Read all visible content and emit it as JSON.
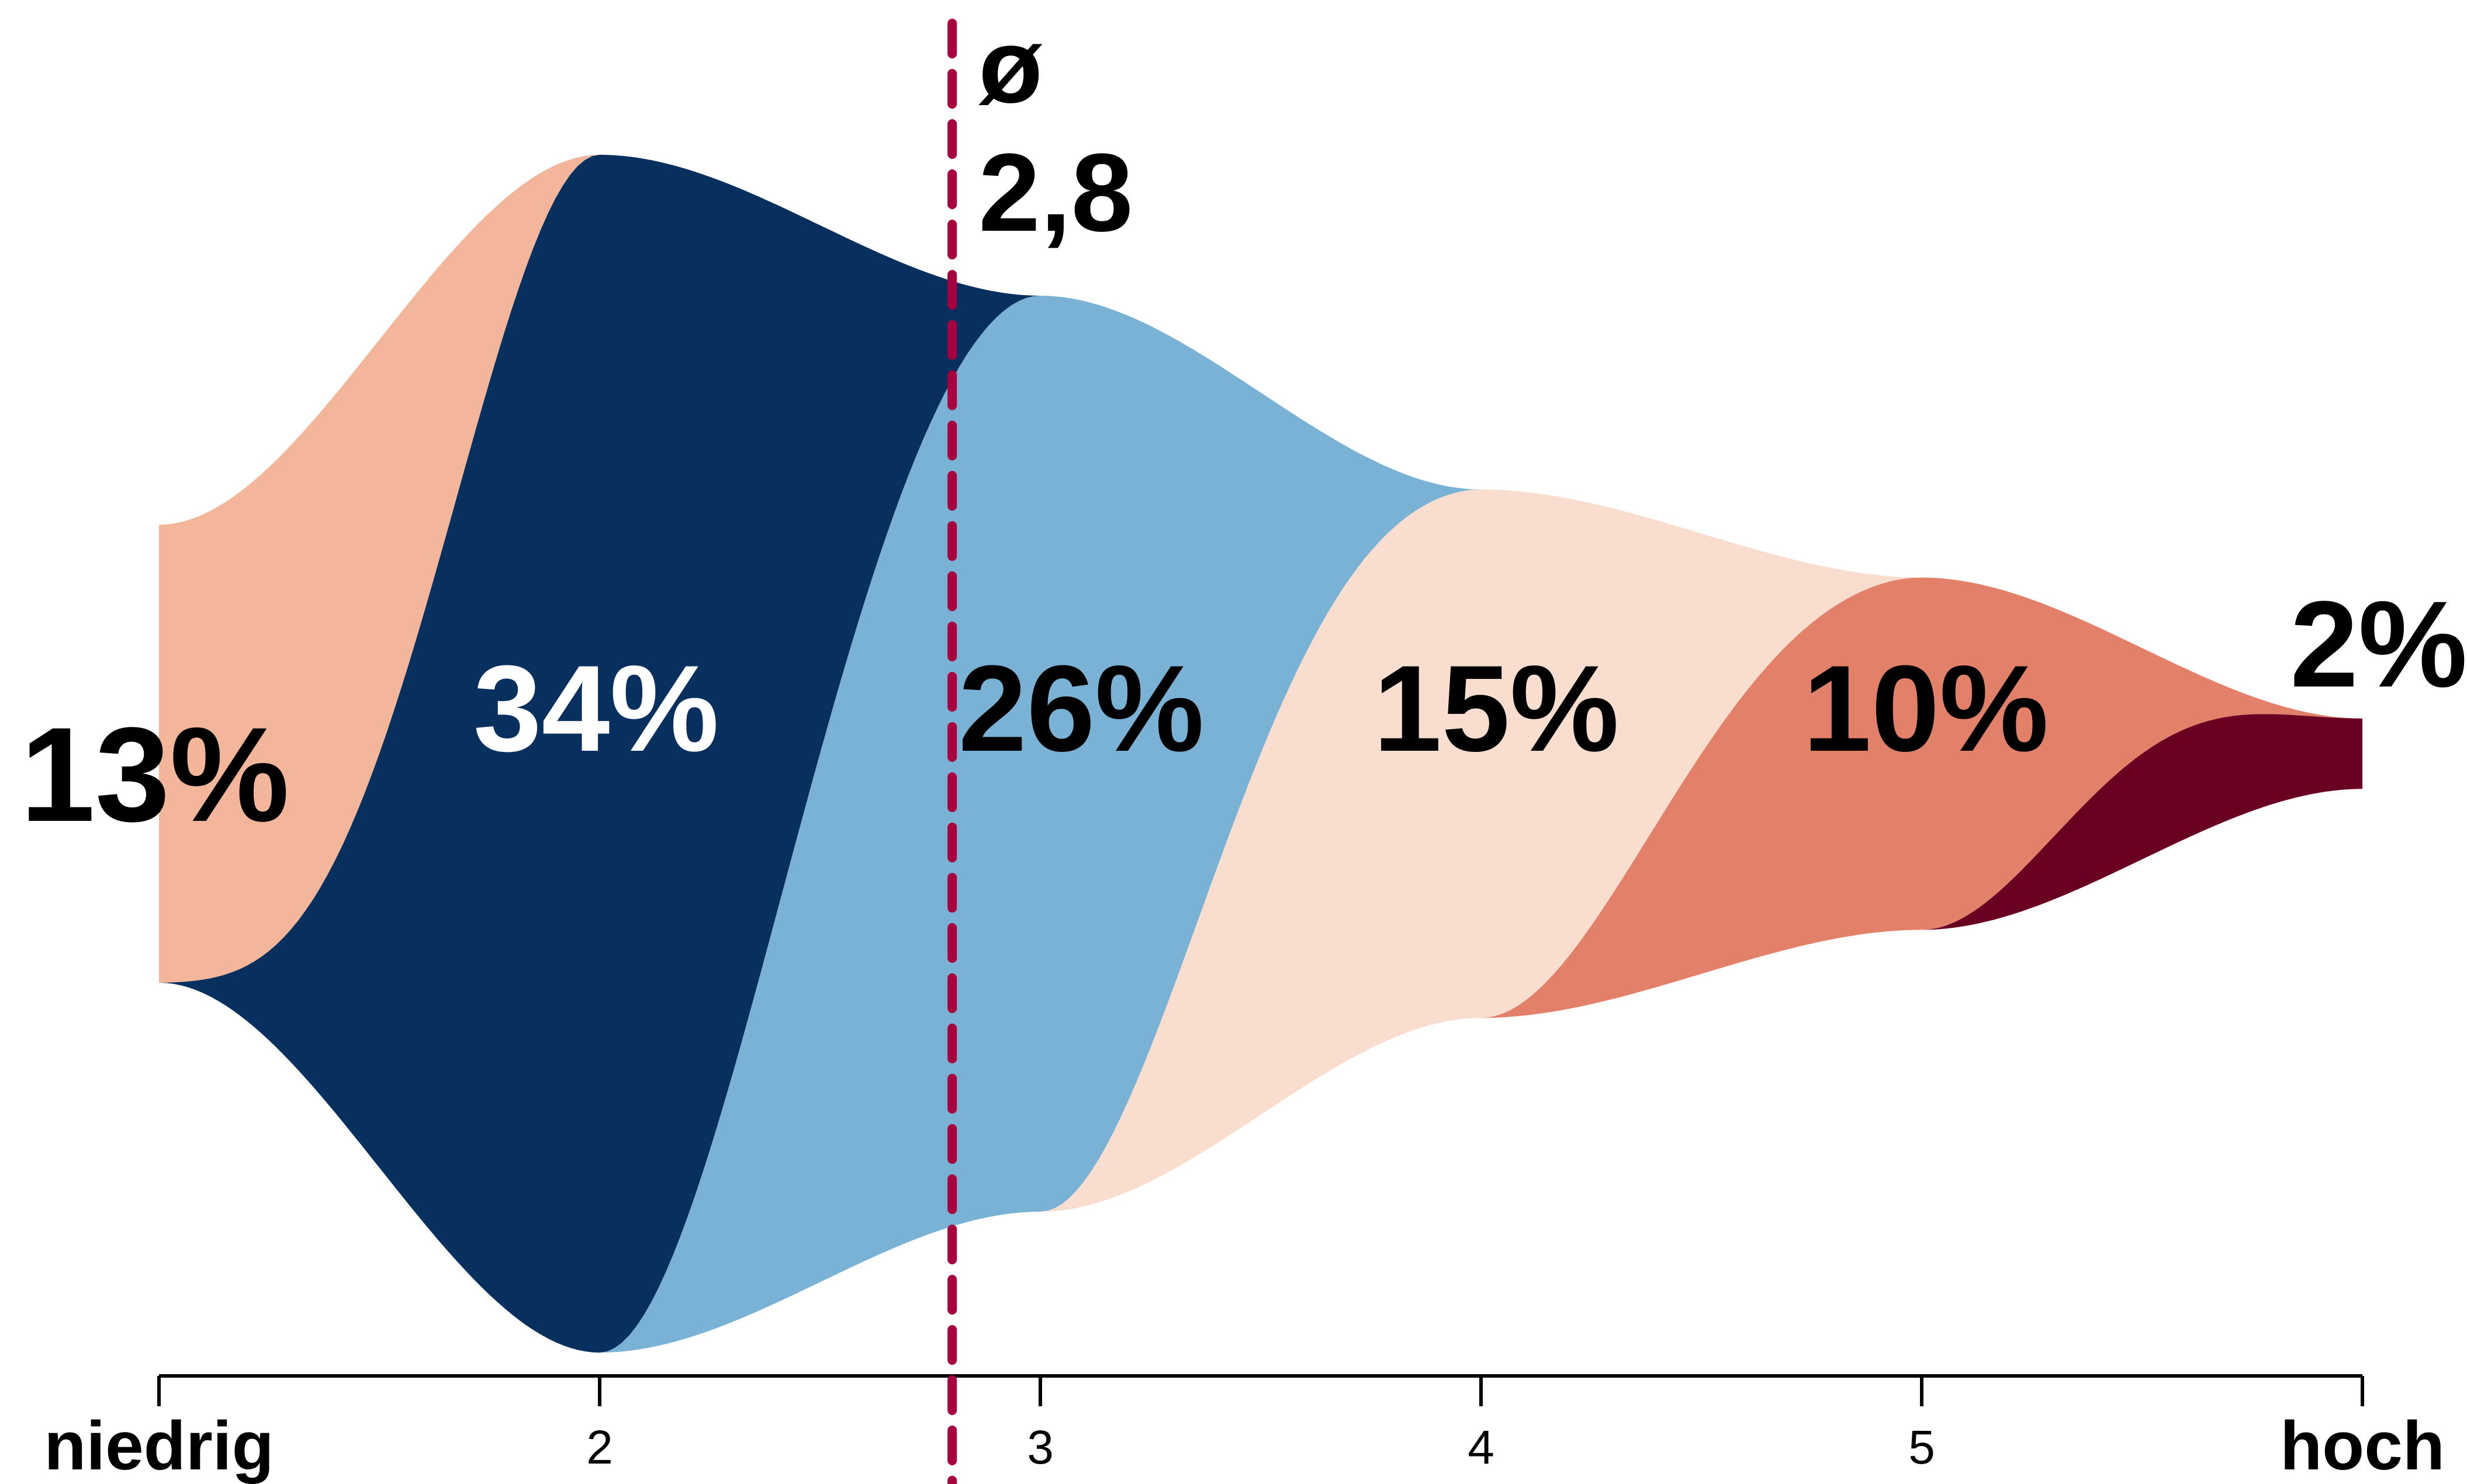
{
  "chart_data": {
    "type": "area",
    "x": [
      1,
      2,
      3,
      4,
      5,
      6
    ],
    "xlim": [
      1,
      6
    ],
    "scale_labels": {
      "low": "niedrig",
      "high": "hoch"
    },
    "tick_labels": [
      "2",
      "3",
      "4",
      "5"
    ],
    "values": [
      13,
      34,
      26,
      15,
      10,
      2
    ],
    "value_labels": [
      "13%",
      "34%",
      "26%",
      "15%",
      "10%",
      "2%"
    ],
    "colors": [
      "#F4B69A",
      "#08305F",
      "#79B2D5",
      "#F9DDCF",
      "#E2806A",
      "#6A0021"
    ],
    "label_colors": [
      "#000000",
      "#ffffff",
      "#000000",
      "#000000",
      "#000000",
      "#000000"
    ],
    "mean": {
      "value": 2.8,
      "symbol": "ø",
      "label": "2,8",
      "color": "#A8003E"
    }
  }
}
